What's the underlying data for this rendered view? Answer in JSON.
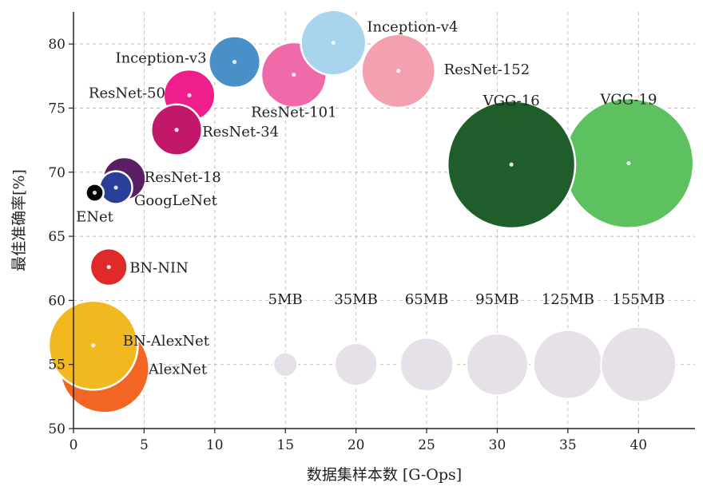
{
  "chart_data": {
    "type": "scatter",
    "subtype": "bubble",
    "xlabel": "数据集样本数 [G-Ops]",
    "ylabel": "最佳准确率[%]",
    "xlim": [
      0,
      44
    ],
    "ylim": [
      50,
      82.5
    ],
    "x_ticks": [
      0,
      5,
      10,
      15,
      20,
      25,
      30,
      35,
      40
    ],
    "y_ticks": [
      50,
      55,
      60,
      65,
      70,
      75,
      80
    ],
    "grid": true,
    "grid_style": "dashed",
    "points": [
      {
        "label": "AlexNet",
        "x": 2.2,
        "y": 54.7,
        "size_mb": 233,
        "color": "#f26522"
      },
      {
        "label": "BN-AlexNet",
        "x": 1.4,
        "y": 56.5,
        "size_mb": 233,
        "color": "#f2b81f"
      },
      {
        "label": "BN-NIN",
        "x": 2.5,
        "y": 62.6,
        "size_mb": 24,
        "color": "#e02a2a"
      },
      {
        "label": "ENet",
        "x": 1.5,
        "y": 68.4,
        "size_mb": 1,
        "color": "#000000"
      },
      {
        "label": "GoogLeNet",
        "x": 3.0,
        "y": 68.8,
        "size_mb": 16,
        "color": "#2a3f9a"
      },
      {
        "label": "ResNet-18",
        "x": 3.6,
        "y": 69.5,
        "size_mb": 36,
        "color": "#5a1f63"
      },
      {
        "label": "ResNet-34",
        "x": 7.3,
        "y": 73.3,
        "size_mb": 58,
        "color": "#c2186b"
      },
      {
        "label": "ResNet-50",
        "x": 8.2,
        "y": 76.0,
        "size_mb": 60,
        "color": "#ee1f8c"
      },
      {
        "label": "Inception-v3",
        "x": 11.4,
        "y": 78.6,
        "size_mb": 60,
        "color": "#4a90c8"
      },
      {
        "label": "ResNet-101",
        "x": 15.6,
        "y": 77.6,
        "size_mb": 110,
        "color": "#f06aa9"
      },
      {
        "label": "Inception-v4",
        "x": 18.4,
        "y": 80.1,
        "size_mb": 110,
        "color": "#a8d4ee"
      },
      {
        "label": "ResNet-152",
        "x": 23.0,
        "y": 77.9,
        "size_mb": 148,
        "color": "#f5a0b0"
      },
      {
        "label": "VGG-16",
        "x": 31.0,
        "y": 70.6,
        "size_mb": 528,
        "color": "#1f5e2b"
      },
      {
        "label": "VGG-19",
        "x": 39.3,
        "y": 70.7,
        "size_mb": 548,
        "color": "#5cc15e"
      }
    ],
    "size_legend": {
      "y": 55,
      "color": "#e6e1e8",
      "items": [
        {
          "label": "5MB",
          "x": 15
        },
        {
          "label": "35MB",
          "x": 20
        },
        {
          "label": "65MB",
          "x": 25
        },
        {
          "label": "95MB",
          "x": 30
        },
        {
          "label": "125MB",
          "x": 35
        },
        {
          "label": "155MB",
          "x": 40
        }
      ]
    }
  }
}
